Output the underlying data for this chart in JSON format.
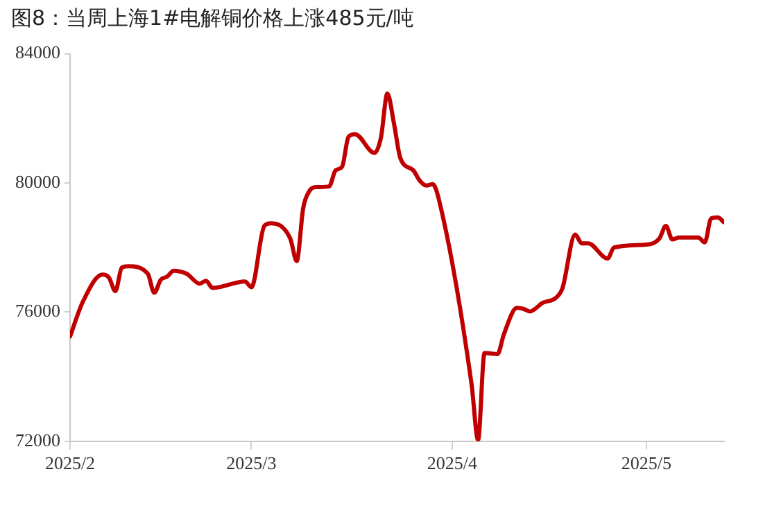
{
  "chart_data": {
    "type": "line",
    "title": "图8：当周上海1#电解铜价格上涨485元/吨",
    "x": [
      "2025-02-01",
      "2025-02-03",
      "2025-02-06",
      "2025-02-07",
      "2025-02-08",
      "2025-02-09",
      "2025-02-10",
      "2025-02-13",
      "2025-02-14",
      "2025-02-15",
      "2025-02-16",
      "2025-02-17",
      "2025-02-19",
      "2025-02-21",
      "2025-02-22",
      "2025-02-23",
      "2025-02-28",
      "2025-03-01",
      "2025-03-03",
      "2025-03-04",
      "2025-03-07",
      "2025-03-08",
      "2025-03-09",
      "2025-03-10",
      "2025-03-11",
      "2025-03-13",
      "2025-03-14",
      "2025-03-15",
      "2025-03-16",
      "2025-03-17",
      "2025-03-20",
      "2025-03-21",
      "2025-03-22",
      "2025-03-23",
      "2025-03-24",
      "2025-03-26",
      "2025-03-27",
      "2025-03-28",
      "2025-03-29",
      "2025-03-30",
      "2025-04-04",
      "2025-04-05",
      "2025-04-06",
      "2025-04-08",
      "2025-04-09",
      "2025-04-11",
      "2025-04-12",
      "2025-04-13",
      "2025-04-15",
      "2025-04-17",
      "2025-04-18",
      "2025-04-20",
      "2025-04-21",
      "2025-04-22",
      "2025-04-25",
      "2025-04-26",
      "2025-05-01",
      "2025-05-03",
      "2025-05-04",
      "2025-05-05",
      "2025-05-06",
      "2025-05-09",
      "2025-05-10",
      "2025-05-11",
      "2025-05-12",
      "2025-05-13"
    ],
    "series": [
      {
        "color": "#c00000",
        "values": [
          75250,
          76330,
          77160,
          77070,
          76650,
          77380,
          77420,
          77190,
          76600,
          77000,
          77100,
          77280,
          77190,
          76880,
          76970,
          76750,
          76950,
          76770,
          78670,
          78750,
          78280,
          77580,
          79220,
          79760,
          79870,
          79890,
          80390,
          80500,
          81430,
          81510,
          80930,
          81400,
          82770,
          81860,
          80770,
          80390,
          80070,
          79920,
          79960,
          79450,
          73760,
          72040,
          74730,
          74700,
          75320,
          76130,
          76100,
          76020,
          76290,
          76440,
          76720,
          78400,
          78130,
          78130,
          77660,
          78000,
          78090,
          78280,
          78670,
          78250,
          78310,
          78310,
          78160,
          78900,
          78930,
          78780
        ]
      }
    ],
    "xlim": [
      "2025-02-01",
      "2025-05-13"
    ],
    "xticks": [
      {
        "value": "2025-02-01",
        "label": "2025/2"
      },
      {
        "value": "2025-03-01",
        "label": "2025/3"
      },
      {
        "value": "2025-04-01",
        "label": "2025/4"
      },
      {
        "value": "2025-05-01",
        "label": "2025/5"
      }
    ],
    "ylim": [
      72000,
      84000
    ],
    "yticks": [
      72000,
      76000,
      80000,
      84000
    ],
    "grid": false,
    "legend": false,
    "marker": "none",
    "line_style": "solid"
  }
}
